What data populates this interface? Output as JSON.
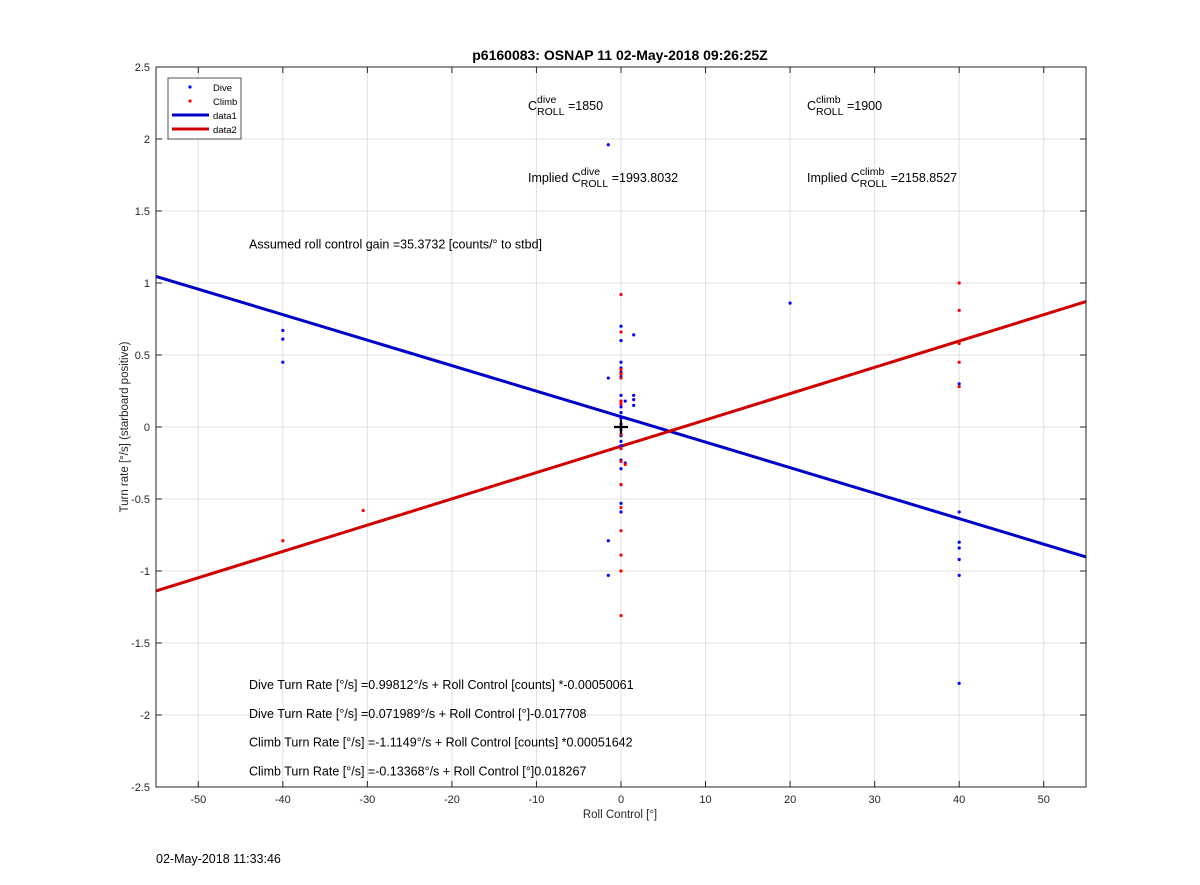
{
  "chart_data": {
    "type": "scatter",
    "title": "p6160083: OSNAP 11 02-May-2018 09:26:25Z",
    "xlabel": "Roll Control [°]",
    "ylabel": "Turn rate [°/s] (starboard positive)",
    "xlim": [
      -55,
      55
    ],
    "ylim": [
      -2.5,
      2.5
    ],
    "xticks": [
      -50,
      -40,
      -30,
      -20,
      -10,
      0,
      10,
      20,
      30,
      40,
      50
    ],
    "yticks": [
      -2.5,
      -2,
      -1.5,
      -1,
      -0.5,
      0,
      0.5,
      1,
      1.5,
      2,
      2.5
    ],
    "xtick_labels": [
      "-50",
      "-40",
      "-30",
      "-20",
      "-10",
      "0",
      "10",
      "20",
      "30",
      "40",
      "50"
    ],
    "ytick_labels": [
      "-2.5",
      "-2",
      "-1.5",
      "-1",
      "-0.5",
      "0",
      "0.5",
      "1",
      "1.5",
      "2",
      "2.5"
    ],
    "grid": true,
    "legend_position": "top-left",
    "series": [
      {
        "name": "Dive",
        "kind": "points",
        "color": "#0000ff",
        "points": [
          [
            -40,
            0.67
          ],
          [
            -40,
            0.61
          ],
          [
            -40,
            0.45
          ],
          [
            -1.5,
            1.96
          ],
          [
            -1.5,
            0.34
          ],
          [
            -1.5,
            -0.79
          ],
          [
            -1.5,
            -1.03
          ],
          [
            0,
            0.7
          ],
          [
            0,
            0.6
          ],
          [
            0,
            0.45
          ],
          [
            0,
            0.41
          ],
          [
            0,
            0.38
          ],
          [
            0,
            0.35
          ],
          [
            0,
            0.22
          ],
          [
            0,
            0.18
          ],
          [
            0,
            0.14
          ],
          [
            0,
            0.1
          ],
          [
            0,
            0.06
          ],
          [
            0,
            0.02
          ],
          [
            0,
            -0.02
          ],
          [
            0,
            -0.06
          ],
          [
            0,
            -0.1
          ],
          [
            0,
            -0.13
          ],
          [
            0,
            -0.23
          ],
          [
            0,
            -0.29
          ],
          [
            0,
            -0.4
          ],
          [
            0,
            -0.53
          ],
          [
            0,
            -0.59
          ],
          [
            0.5,
            -0.25
          ],
          [
            0.5,
            0.18
          ],
          [
            1.5,
            0.64
          ],
          [
            1.5,
            0.22
          ],
          [
            1.5,
            0.19
          ],
          [
            1.5,
            0.15
          ],
          [
            20,
            0.86
          ],
          [
            40,
            0.3
          ],
          [
            40,
            -0.59
          ],
          [
            40,
            -0.8
          ],
          [
            40,
            -0.84
          ],
          [
            40,
            -0.92
          ],
          [
            40,
            -1.03
          ],
          [
            40,
            -1.78
          ]
        ]
      },
      {
        "name": "Climb",
        "kind": "points",
        "color": "#ff0000",
        "points": [
          [
            -40,
            -0.79
          ],
          [
            -30.5,
            -0.58
          ],
          [
            0,
            0.92
          ],
          [
            0,
            0.66
          ],
          [
            0,
            0.4
          ],
          [
            0,
            0.37
          ],
          [
            0,
            0.34
          ],
          [
            0,
            0.18
          ],
          [
            0,
            0.16
          ],
          [
            0,
            -0.05
          ],
          [
            0,
            -0.15
          ],
          [
            0,
            -0.24
          ],
          [
            0,
            -0.4
          ],
          [
            0,
            -0.56
          ],
          [
            0,
            -0.72
          ],
          [
            0,
            -0.89
          ],
          [
            0,
            -1.0
          ],
          [
            0,
            -1.31
          ],
          [
            0.5,
            -0.26
          ],
          [
            40,
            1.0
          ],
          [
            40,
            0.81
          ],
          [
            40,
            0.58
          ],
          [
            40,
            0.45
          ],
          [
            40,
            0.28
          ]
        ]
      },
      {
        "name": "data1",
        "kind": "line",
        "color": "#0000c8",
        "intercept": 0.071989,
        "slope": -0.017708
      },
      {
        "name": "data2",
        "kind": "line",
        "color": "#d00000",
        "intercept": -0.13368,
        "slope": 0.018267
      }
    ],
    "marker": {
      "x": 0,
      "y": 0,
      "symbol": "+"
    },
    "annotations": {
      "c_dive": {
        "pre": "C",
        "sup": "dive",
        "sub": "ROLL",
        "post": " =1850",
        "x": -11,
        "y": 2.2
      },
      "c_climb": {
        "pre": "C",
        "sup": "climb",
        "sub": "ROLL",
        "post": " =1900",
        "x": 22,
        "y": 2.2
      },
      "implied_dive": {
        "pre": "Implied C",
        "sup": "dive",
        "sub": "ROLL",
        "post": " =1993.8032",
        "x": -11,
        "y": 1.7
      },
      "implied_climb": {
        "pre": "Implied C",
        "sup": "climb",
        "sub": "ROLL",
        "post": " =2158.8527",
        "x": 22,
        "y": 1.7
      },
      "gain": {
        "text": "Assumed roll control gain =35.3732 [counts/° to stbd]",
        "x": -44,
        "y": 1.24
      },
      "eq1": {
        "text": "Dive Turn Rate [°/s] =0.99812°/s + Roll Control [counts] *-0.00050061",
        "x": -44,
        "y": -1.82
      },
      "eq2": {
        "text": "Dive Turn Rate [°/s] =0.071989°/s + Roll Control [°]-0.017708",
        "x": -44,
        "y": -2.02
      },
      "eq3": {
        "text": "Climb Turn Rate [°/s] =-1.1149°/s + Roll Control [counts] *0.00051642",
        "x": -44,
        "y": -2.22
      },
      "eq4": {
        "text": "Climb Turn Rate [°/s] =-0.13368°/s + Roll Control [°]0.018267",
        "x": -44,
        "y": -2.42
      }
    }
  },
  "footer": {
    "timestamp": "02-May-2018 11:33:46"
  }
}
